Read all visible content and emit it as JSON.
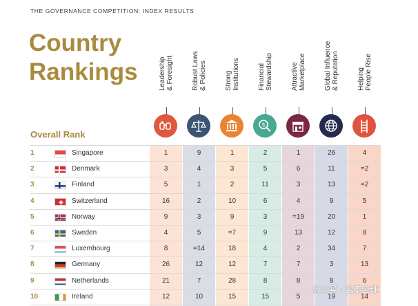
{
  "top_label": "THE GOVERNANCE COMPETITION: INDEX RESULTS",
  "title_line1": "Country",
  "title_line2": "Rankings",
  "overall_rank_label": "Overall Rank",
  "pillars": [
    {
      "label": "Leadership\n& Foresight",
      "icon": "binoculars-icon",
      "color": "#e0593f",
      "bg": "#fce3d6"
    },
    {
      "label": "Robust Laws\n& Policies",
      "icon": "scales-icon",
      "color": "#3b5573",
      "bg": "#d9dde6"
    },
    {
      "label": "Strong\nInstitutions",
      "icon": "institution-icon",
      "color": "#e98532",
      "bg": "#fde6d2"
    },
    {
      "label": "Financial\nStewardship",
      "icon": "money-search-icon",
      "color": "#47a893",
      "bg": "#d8ece6"
    },
    {
      "label": "Attractive\nMarketplace",
      "icon": "storefront-icon",
      "color": "#7a2741",
      "bg": "#e6d5dc"
    },
    {
      "label": "Global Influence\n& Reputation",
      "icon": "globe-icon",
      "color": "#262a4e",
      "bg": "#d8d9e6"
    },
    {
      "label": "Helping\nPeople Rise",
      "icon": "ladder-icon",
      "color": "#e0533e",
      "bg": "#fad6c9"
    }
  ],
  "rows": [
    {
      "rank": "1",
      "country": "Singapore",
      "flag": "singapore",
      "values": [
        "1",
        "9",
        "1",
        "2",
        "1",
        "26",
        "4"
      ]
    },
    {
      "rank": "2",
      "country": "Denmark",
      "flag": "denmark",
      "values": [
        "3",
        "4",
        "3",
        "5",
        "6",
        "11",
        "=2"
      ]
    },
    {
      "rank": "3",
      "country": "Finland",
      "flag": "finland",
      "values": [
        "5",
        "1",
        "2",
        "11",
        "3",
        "13",
        "=2"
      ]
    },
    {
      "rank": "4",
      "country": "Switzerland",
      "flag": "switzerland",
      "values": [
        "16",
        "2",
        "10",
        "6",
        "4",
        "9",
        "5"
      ]
    },
    {
      "rank": "5",
      "country": "Norway",
      "flag": "norway",
      "values": [
        "9",
        "3",
        "9",
        "3",
        "=19",
        "20",
        "1"
      ]
    },
    {
      "rank": "6",
      "country": "Sweden",
      "flag": "sweden",
      "values": [
        "4",
        "5",
        "=7",
        "9",
        "13",
        "12",
        "8"
      ]
    },
    {
      "rank": "7",
      "country": "Luxembourg",
      "flag": "luxembourg",
      "values": [
        "8",
        "=14",
        "18",
        "4",
        "2",
        "34",
        "7"
      ]
    },
    {
      "rank": "8",
      "country": "Germany",
      "flag": "germany",
      "values": [
        "26",
        "12",
        "12",
        "7",
        "7",
        "3",
        "13"
      ]
    },
    {
      "rank": "9",
      "country": "Netherlands",
      "flag": "netherlands",
      "values": [
        "21",
        "7",
        "28",
        "8",
        "8",
        "8",
        "6"
      ]
    },
    {
      "rank": "10",
      "country": "Ireland",
      "flag": "ireland",
      "values": [
        "12",
        "10",
        "15",
        "15",
        "5",
        "19",
        "14"
      ]
    }
  ],
  "watermark": "公众号 · 盈泰全球"
}
